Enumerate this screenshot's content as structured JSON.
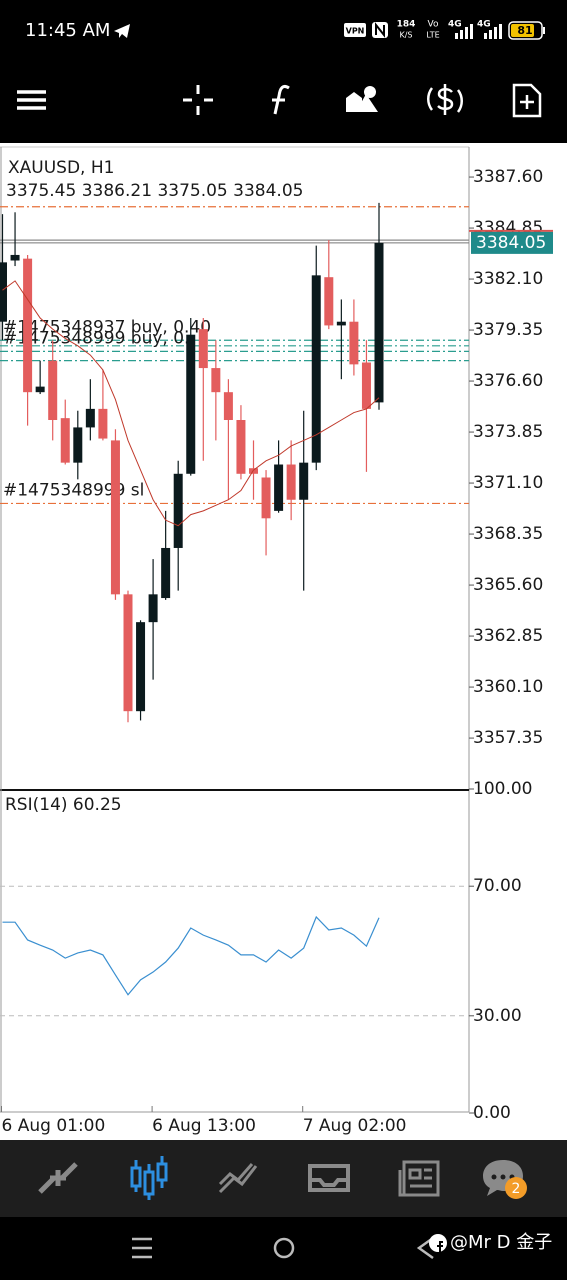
{
  "status_bar": {
    "time": "11:45 AM",
    "vpn": "VPN",
    "speed": "184",
    "speed_unit": "K/S",
    "volte_top": "Vo",
    "volte_bottom": "LTE",
    "net1": "4G",
    "net2": "4G",
    "battery": "81"
  },
  "chart_data": [
    {
      "type": "candlestick",
      "title": "XAUUSD, H1",
      "categories": [
        "6 Aug 01:00",
        null,
        null,
        null,
        null,
        null,
        null,
        null,
        null,
        null,
        null,
        null,
        "6 Aug 13:00",
        null,
        null,
        null,
        null,
        null,
        null,
        null,
        null,
        null,
        null,
        null,
        "7 Aug 02:00",
        null,
        null,
        null,
        null,
        null,
        null
      ],
      "open": [
        3379.8,
        3383.1,
        3383.2,
        3376.0,
        3377.7,
        3374.6,
        3372.2,
        3374.1,
        3375.1,
        3373.4,
        3365.1,
        3358.8,
        3363.6,
        3364.9,
        3367.6,
        3371.6,
        3379.4,
        3377.3,
        3376.0,
        3374.5,
        3371.9,
        3371.4,
        3369.6,
        3372.1,
        3370.2,
        3372.2,
        3382.2,
        3379.6,
        3379.8,
        3377.6,
        3375.45
      ],
      "high": [
        3385.6,
        3385.7,
        3383.4,
        3377.7,
        3378.8,
        3375.6,
        3375.0,
        3376.7,
        3377.2,
        3374.0,
        3365.3,
        3363.7,
        3367.0,
        3369.6,
        3372.3,
        3380.0,
        3380.0,
        3378.8,
        3376.7,
        3375.3,
        3373.4,
        3371.8,
        3373.4,
        3373.4,
        3375.0,
        3383.9,
        3384.2,
        3381.0,
        3381.0,
        3378.8,
        3386.21
      ],
      "low": [
        3378.8,
        3382.8,
        3374.2,
        3375.9,
        3373.4,
        3372.1,
        3371.3,
        3373.4,
        3373.4,
        3364.8,
        3358.2,
        3358.3,
        3360.5,
        3364.8,
        3365.3,
        3371.5,
        3372.3,
        3373.4,
        3370.2,
        3371.3,
        3370.2,
        3367.2,
        3369.5,
        3369.1,
        3365.3,
        3371.8,
        3379.4,
        3376.7,
        3376.9,
        3371.7,
        3375.05
      ],
      "close": [
        3383.0,
        3383.4,
        3376.0,
        3376.3,
        3374.5,
        3372.2,
        3374.1,
        3375.1,
        3373.5,
        3365.1,
        3358.8,
        3363.6,
        3365.1,
        3367.6,
        3371.6,
        3379.1,
        3377.3,
        3376.0,
        3374.5,
        3371.6,
        3371.6,
        3369.2,
        3372.1,
        3370.2,
        3372.2,
        3382.3,
        3379.6,
        3379.8,
        3377.5,
        3375.1,
        3384.05
      ],
      "up_color": "#0b1a1d",
      "down_color": "#e35d5d",
      "ma": {
        "color": "#c0392b",
        "values": [
          3381.5,
          3382.0,
          3381.0,
          3380.0,
          3379.4,
          3378.9,
          3378.5,
          3378.0,
          3377.2,
          3375.6,
          3373.4,
          3371.8,
          3370.2,
          3369.1,
          3368.8,
          3369.4,
          3369.6,
          3369.9,
          3370.2,
          3370.7,
          3371.8,
          3372.3,
          3372.6,
          3373.1,
          3373.4,
          3373.7,
          3374.1,
          3374.5,
          3374.9,
          3375.1,
          3375.7
        ]
      },
      "levels": [
        {
          "price": 3386.0,
          "color": "#e8703a",
          "style": "dashdot"
        },
        {
          "price": 3384.2,
          "color": "#8a8a8a",
          "style": "solid"
        },
        {
          "price": 3378.8,
          "color": "#2a9d8f",
          "style": "dashdot",
          "label": "#1475348937 buy, 0.40"
        },
        {
          "price": 3378.5,
          "color": "#2a9d8f",
          "style": "dashdot"
        },
        {
          "price": 3378.2,
          "color": "#2a9d8f",
          "style": "dashdot",
          "label": "#1475348999 buy, 0."
        },
        {
          "price": 3377.7,
          "color": "#2a9d8f",
          "style": "dashdot"
        },
        {
          "price": 3370.0,
          "color": "#e8703a",
          "style": "dashdot",
          "label": "#1475348999 sl"
        }
      ],
      "price_box_color": "#1f8a8a",
      "ylim": [
        3354.55,
        3389.22
      ],
      "yticks": [
        {
          "value": 3387.6,
          "label": "3387.60"
        },
        {
          "value": 3384.85,
          "label": "3384.85"
        },
        {
          "value": 3382.1,
          "label": "3382.10"
        },
        {
          "value": 3379.35,
          "label": "3379.35"
        },
        {
          "value": 3376.6,
          "label": "3376.60"
        },
        {
          "value": 3373.85,
          "label": "3373.85"
        },
        {
          "value": 3371.1,
          "label": "3371.10"
        },
        {
          "value": 3368.35,
          "label": "3368.35"
        },
        {
          "value": 3365.6,
          "label": "3365.60"
        },
        {
          "value": 3362.85,
          "label": "3362.85"
        },
        {
          "value": 3360.1,
          "label": "3360.10"
        },
        {
          "value": 3357.35,
          "label": "3357.35"
        }
      ],
      "grid": false
    },
    {
      "type": "line",
      "title": "RSI(14)",
      "color": "#3a8fd0",
      "values": [
        58.9,
        58.9,
        53.4,
        51.8,
        50.3,
        47.8,
        49.4,
        50.3,
        48.8,
        42.6,
        36.5,
        41.1,
        43.5,
        46.6,
        50.9,
        57.1,
        54.9,
        53.4,
        51.8,
        48.8,
        48.8,
        46.6,
        50.3,
        47.8,
        50.9,
        60.5,
        56.5,
        57.1,
        54.9,
        51.5,
        60.25
      ],
      "ylim": [
        0,
        100
      ],
      "yticks": [
        {
          "value": 100,
          "label": "100.00"
        },
        {
          "value": 70,
          "label": "70.00"
        },
        {
          "value": 30,
          "label": "30.00"
        },
        {
          "value": 0,
          "label": "0.00"
        }
      ],
      "grid": true
    }
  ],
  "nav_badge": "2",
  "watermark": "@Mr D 金子"
}
